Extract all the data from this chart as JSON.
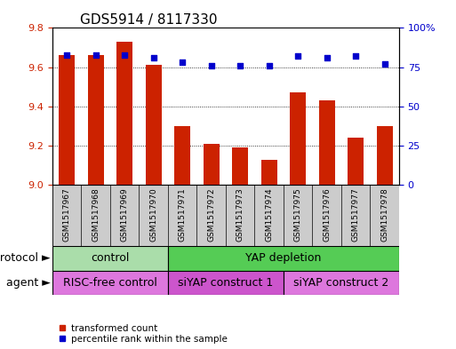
{
  "title": "GDS5914 / 8117330",
  "samples": [
    "GSM1517967",
    "GSM1517968",
    "GSM1517969",
    "GSM1517970",
    "GSM1517971",
    "GSM1517972",
    "GSM1517973",
    "GSM1517974",
    "GSM1517975",
    "GSM1517976",
    "GSM1517977",
    "GSM1517978"
  ],
  "transformed_counts": [
    9.66,
    9.66,
    9.73,
    9.61,
    9.3,
    9.21,
    9.19,
    9.13,
    9.47,
    9.43,
    9.24,
    9.3
  ],
  "percentile_ranks": [
    83,
    83,
    83,
    81,
    78,
    76,
    76,
    76,
    82,
    81,
    82,
    77
  ],
  "ylim_left": [
    9.0,
    9.8
  ],
  "ylim_right": [
    0,
    100
  ],
  "yticks_left": [
    9.0,
    9.2,
    9.4,
    9.6,
    9.8
  ],
  "yticks_right": [
    0,
    25,
    50,
    75,
    100
  ],
  "bar_color": "#cc2200",
  "dot_color": "#0000cc",
  "sample_bg_color": "#cccccc",
  "protocol_groups": [
    {
      "label": "control",
      "start": 0,
      "end": 4,
      "color": "#aaddaa"
    },
    {
      "label": "YAP depletion",
      "start": 4,
      "end": 12,
      "color": "#55cc55"
    }
  ],
  "agent_groups": [
    {
      "label": "RISC-free control",
      "start": 0,
      "end": 4,
      "color": "#dd77dd"
    },
    {
      "label": "siYAP construct 1",
      "start": 4,
      "end": 8,
      "color": "#cc55cc"
    },
    {
      "label": "siYAP construct 2",
      "start": 8,
      "end": 12,
      "color": "#dd77dd"
    }
  ],
  "protocol_label": "protocol",
  "agent_label": "agent",
  "legend_tc": "transformed count",
  "legend_pr": "percentile rank within the sample",
  "left_axis_color": "#cc2200",
  "right_axis_color": "#0000cc",
  "grid_color": "#888888",
  "title_fontsize": 11,
  "tick_fontsize": 8,
  "sample_fontsize": 6.5,
  "label_fontsize": 9,
  "bar_width": 0.55
}
